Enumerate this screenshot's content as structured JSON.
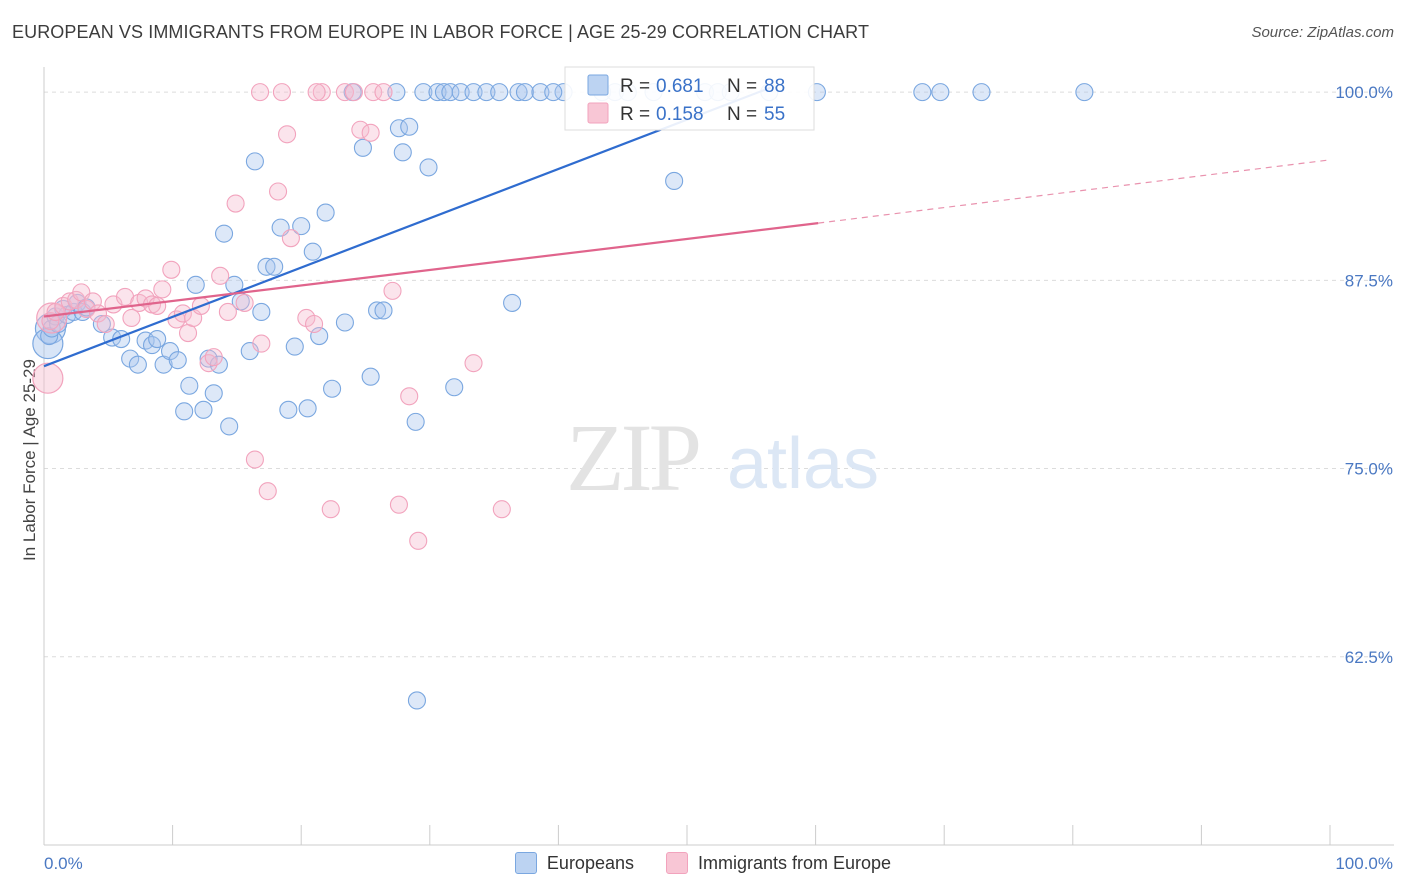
{
  "title": "EUROPEAN VS IMMIGRANTS FROM EUROPE IN LABOR FORCE | AGE 25-29 CORRELATION CHART",
  "source": "Source: ZipAtlas.com",
  "watermark": {
    "zip": "ZIP",
    "atlas": "atlas"
  },
  "chart_data": {
    "type": "scatter",
    "title": "EUROPEAN VS IMMIGRANTS FROM EUROPE IN LABOR FORCE | AGE 25-29 CORRELATION CHART",
    "xlabel": "",
    "ylabel": "In Labor Force | Age 25-29",
    "xlim": [
      0,
      100
    ],
    "ylim": [
      50,
      102
    ],
    "x_tick_labels": {
      "min": "0.0%",
      "max": "100.0%"
    },
    "y_ticks": [
      {
        "value": 100,
        "label": "100.0%"
      },
      {
        "value": 87.5,
        "label": "87.5%"
      },
      {
        "value": 75,
        "label": "75.0%"
      },
      {
        "value": 62.5,
        "label": "62.5%"
      }
    ],
    "grid": true,
    "legend_position": "top-center",
    "series": [
      {
        "name": "Europeans",
        "color": "#7aa7e0",
        "line_color": "#2f6ccf",
        "R": "0.681",
        "N": "88",
        "r_label": "R =",
        "n_label": "N =",
        "trend": {
          "x0": 0,
          "y0": 81.8,
          "x1": 56.5,
          "y1": 100.3
        },
        "points": [
          [
            0.4,
            83.8
          ],
          [
            0.6,
            84.3
          ],
          [
            0.9,
            85.1
          ],
          [
            1.1,
            84.6
          ],
          [
            1.5,
            85.6
          ],
          [
            1.8,
            85.2
          ],
          [
            2.3,
            85.4
          ],
          [
            2.6,
            86.0
          ],
          [
            3.0,
            85.4
          ],
          [
            3.3,
            85.7
          ],
          [
            4.5,
            84.6
          ],
          [
            5.3,
            83.7
          ],
          [
            6.0,
            83.6
          ],
          [
            6.7,
            82.3
          ],
          [
            7.3,
            81.9
          ],
          [
            7.9,
            83.5
          ],
          [
            8.4,
            83.2
          ],
          [
            8.8,
            83.6
          ],
          [
            9.3,
            81.9
          ],
          [
            9.8,
            82.8
          ],
          [
            10.4,
            82.2
          ],
          [
            10.9,
            78.8
          ],
          [
            11.3,
            80.5
          ],
          [
            11.8,
            87.2
          ],
          [
            12.4,
            78.9
          ],
          [
            12.8,
            82.3
          ],
          [
            13.2,
            80.0
          ],
          [
            13.6,
            81.9
          ],
          [
            14.0,
            90.6
          ],
          [
            14.4,
            77.8
          ],
          [
            14.8,
            87.2
          ],
          [
            15.3,
            86.1
          ],
          [
            16.0,
            82.8
          ],
          [
            16.4,
            95.4
          ],
          [
            16.9,
            85.4
          ],
          [
            17.3,
            88.4
          ],
          [
            17.9,
            88.4
          ],
          [
            18.4,
            91.0
          ],
          [
            19.0,
            78.9
          ],
          [
            19.5,
            83.1
          ],
          [
            20.0,
            91.1
          ],
          [
            20.5,
            79.0
          ],
          [
            20.9,
            89.4
          ],
          [
            21.4,
            83.8
          ],
          [
            21.9,
            92.0
          ],
          [
            22.4,
            80.3
          ],
          [
            23.4,
            84.7
          ],
          [
            24.0,
            100.0
          ],
          [
            24.8,
            96.3
          ],
          [
            25.4,
            81.1
          ],
          [
            25.9,
            85.5
          ],
          [
            26.4,
            85.5
          ],
          [
            27.4,
            100.0
          ],
          [
            27.6,
            97.6
          ],
          [
            27.9,
            96.0
          ],
          [
            28.4,
            97.7
          ],
          [
            28.9,
            78.1
          ],
          [
            29.5,
            100.0
          ],
          [
            29.9,
            95.0
          ],
          [
            30.6,
            100.0
          ],
          [
            31.1,
            100.0
          ],
          [
            31.6,
            100.0
          ],
          [
            31.9,
            80.4
          ],
          [
            32.4,
            100.0
          ],
          [
            33.4,
            100.0
          ],
          [
            34.4,
            100.0
          ],
          [
            35.4,
            100.0
          ],
          [
            36.4,
            86.0
          ],
          [
            36.9,
            100.0
          ],
          [
            37.4,
            100.0
          ],
          [
            38.6,
            100.0
          ],
          [
            40.4,
            100.0
          ],
          [
            43.4,
            100.0
          ],
          [
            44.4,
            100.0
          ],
          [
            45.4,
            100.0
          ],
          [
            47.4,
            100.0
          ],
          [
            49.0,
            94.1
          ],
          [
            51.4,
            100.0
          ],
          [
            52.4,
            100.0
          ],
          [
            53.4,
            100.0
          ],
          [
            56.4,
            100.0
          ],
          [
            60.1,
            100.0
          ],
          [
            68.3,
            100.0
          ],
          [
            69.7,
            100.0
          ],
          [
            72.9,
            100.0
          ],
          [
            80.9,
            100.0
          ],
          [
            29.0,
            59.6
          ],
          [
            39.6,
            100.0
          ]
        ],
        "big_points": [
          [
            0.5,
            84.3
          ],
          [
            0.3,
            83.3
          ]
        ]
      },
      {
        "name": "Immigrants from Europe",
        "color": "#f2a3bd",
        "line_color": "#e0648c",
        "R": "0.158",
        "N": "55",
        "r_label": "R =",
        "n_label": "N =",
        "trend": {
          "x0": 0,
          "y0": 85.1,
          "x1": 60.2,
          "y1": 91.3
        },
        "trend_dash": {
          "x0": 60.2,
          "y0": 91.3,
          "x1": 100,
          "y1": 95.5
        },
        "points": [
          [
            0.5,
            84.8
          ],
          [
            0.9,
            85.4
          ],
          [
            1.5,
            85.8
          ],
          [
            2.0,
            86.1
          ],
          [
            2.5,
            86.2
          ],
          [
            2.9,
            86.7
          ],
          [
            3.3,
            85.6
          ],
          [
            3.8,
            86.1
          ],
          [
            4.2,
            85.3
          ],
          [
            4.8,
            84.6
          ],
          [
            5.4,
            85.9
          ],
          [
            6.3,
            86.4
          ],
          [
            6.8,
            85.0
          ],
          [
            7.4,
            86.0
          ],
          [
            7.9,
            86.3
          ],
          [
            8.4,
            85.9
          ],
          [
            8.8,
            85.8
          ],
          [
            9.2,
            86.9
          ],
          [
            9.9,
            88.2
          ],
          [
            10.3,
            84.9
          ],
          [
            10.8,
            85.3
          ],
          [
            11.2,
            84.0
          ],
          [
            11.6,
            85.0
          ],
          [
            12.2,
            85.8
          ],
          [
            12.8,
            82.0
          ],
          [
            13.2,
            82.4
          ],
          [
            13.7,
            87.8
          ],
          [
            14.3,
            85.4
          ],
          [
            14.9,
            92.6
          ],
          [
            15.6,
            86.0
          ],
          [
            16.4,
            75.6
          ],
          [
            16.9,
            83.3
          ],
          [
            17.4,
            73.5
          ],
          [
            18.2,
            93.4
          ],
          [
            18.9,
            97.2
          ],
          [
            19.2,
            90.3
          ],
          [
            20.4,
            85.0
          ],
          [
            21.0,
            84.6
          ],
          [
            21.6,
            100.0
          ],
          [
            22.3,
            72.3
          ],
          [
            23.4,
            100.0
          ],
          [
            24.1,
            100.0
          ],
          [
            24.6,
            97.5
          ],
          [
            25.6,
            100.0
          ],
          [
            26.4,
            100.0
          ],
          [
            27.1,
            86.8
          ],
          [
            27.6,
            72.6
          ],
          [
            28.4,
            79.8
          ],
          [
            29.1,
            70.2
          ],
          [
            33.4,
            82.0
          ],
          [
            35.6,
            72.3
          ],
          [
            18.5,
            100.0
          ],
          [
            21.2,
            100.0
          ],
          [
            16.8,
            100.0
          ],
          [
            25.4,
            97.3
          ]
        ],
        "big_points": [
          [
            0.6,
            85.0
          ],
          [
            0.3,
            81.0
          ]
        ]
      }
    ]
  }
}
